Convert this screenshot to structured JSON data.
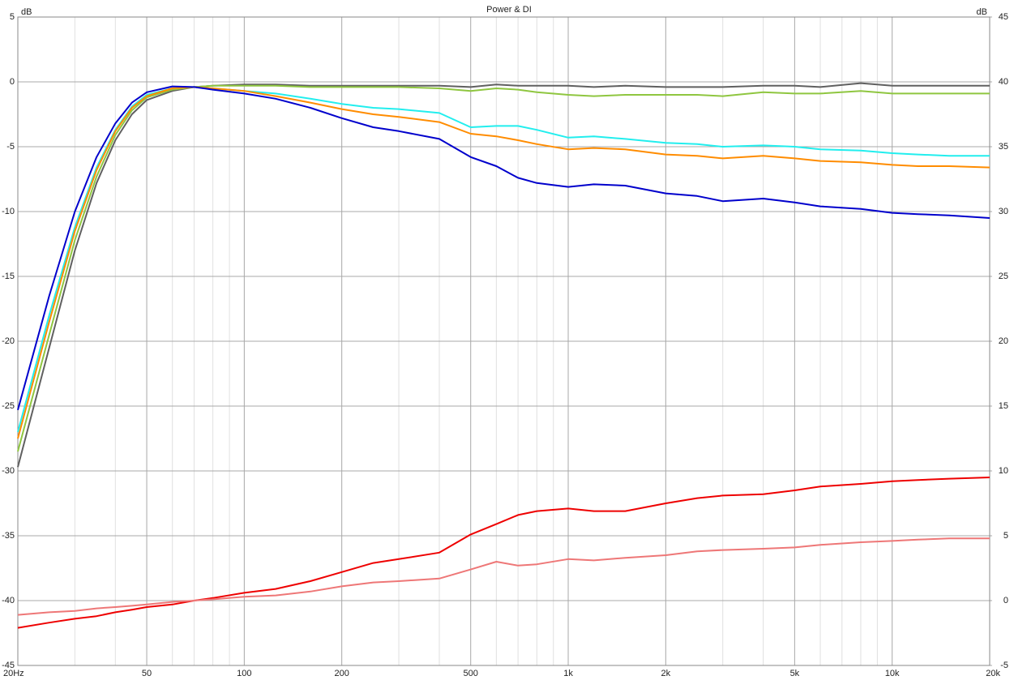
{
  "chart_data": {
    "type": "line",
    "title": "Power & DI",
    "y_label": "dB",
    "y2_label": "dB",
    "log_x": true,
    "grid": true,
    "x": [
      20,
      25,
      30,
      35,
      40,
      45,
      50,
      60,
      70,
      80,
      100,
      125,
      160,
      200,
      250,
      300,
      400,
      500,
      600,
      700,
      800,
      1000,
      1200,
      1500,
      2000,
      2500,
      3000,
      4000,
      5000,
      6000,
      8000,
      10000,
      12000,
      15000,
      20000
    ],
    "xlim": [
      20,
      20000
    ],
    "xticks": [
      {
        "value": 20,
        "label": "20Hz"
      },
      50,
      100,
      200,
      500,
      {
        "value": 1000,
        "label": "1k"
      },
      {
        "value": 2000,
        "label": "2k"
      },
      {
        "value": 5000,
        "label": "5k"
      },
      {
        "value": 10000,
        "label": "10k"
      },
      {
        "value": 20000,
        "label": "20k"
      }
    ],
    "xminorticks": [
      30,
      40,
      60,
      70,
      80,
      90,
      300,
      400,
      600,
      700,
      800,
      900,
      3000,
      4000,
      6000,
      7000,
      8000,
      9000
    ],
    "ylim": [
      -45,
      5
    ],
    "yticks": [
      5,
      0,
      -5,
      -10,
      -15,
      -20,
      -25,
      -30,
      -35,
      -40,
      -45
    ],
    "y2lim": [
      -5,
      45
    ],
    "y2ticks": [
      45,
      40,
      35,
      30,
      25,
      20,
      15,
      10,
      5,
      0,
      -5
    ],
    "series": [
      {
        "color": "#606060",
        "values": [
          -29.7,
          -20.5,
          -13,
          -7.8,
          -4.5,
          -2.5,
          -1.4,
          -0.7,
          -0.4,
          -0.3,
          -0.2,
          -0.2,
          -0.3,
          -0.3,
          -0.3,
          -0.3,
          -0.3,
          -0.4,
          -0.2,
          -0.3,
          -0.3,
          -0.3,
          -0.4,
          -0.3,
          -0.4,
          -0.4,
          -0.4,
          -0.3,
          -0.3,
          -0.4,
          -0.1,
          -0.3,
          -0.3,
          -0.3,
          -0.3
        ]
      },
      {
        "color": "#8fc640",
        "values": [
          -28.5,
          -19.5,
          -12.2,
          -7.3,
          -4.1,
          -2.2,
          -1.2,
          -0.6,
          -0.4,
          -0.3,
          -0.3,
          -0.3,
          -0.4,
          -0.4,
          -0.4,
          -0.4,
          -0.5,
          -0.7,
          -0.5,
          -0.6,
          -0.8,
          -1.0,
          -1.1,
          -1.0,
          -1.0,
          -1.0,
          -1.1,
          -0.8,
          -0.9,
          -0.9,
          -0.7,
          -0.9,
          -0.9,
          -0.9,
          -0.9
        ]
      },
      {
        "color": "#22eeee",
        "values": [
          -27.0,
          -18,
          -11.2,
          -6.6,
          -3.7,
          -1.9,
          -1.0,
          -0.5,
          -0.4,
          -0.5,
          -0.7,
          -0.9,
          -1.3,
          -1.7,
          -2.0,
          -2.1,
          -2.4,
          -3.5,
          -3.4,
          -3.4,
          -3.7,
          -4.3,
          -4.2,
          -4.4,
          -4.7,
          -4.8,
          -5.0,
          -4.9,
          -5.0,
          -5.2,
          -5.3,
          -5.5,
          -5.6,
          -5.7,
          -5.7
        ]
      },
      {
        "color": "#ff8c00",
        "values": [
          -27.5,
          -18.5,
          -11.5,
          -6.8,
          -3.8,
          -2.0,
          -1.1,
          -0.5,
          -0.4,
          -0.5,
          -0.7,
          -1.1,
          -1.6,
          -2.1,
          -2.5,
          -2.7,
          -3.1,
          -4.0,
          -4.2,
          -4.5,
          -4.8,
          -5.2,
          -5.1,
          -5.2,
          -5.6,
          -5.7,
          -5.9,
          -5.7,
          -5.9,
          -6.1,
          -6.2,
          -6.4,
          -6.5,
          -6.5,
          -6.6
        ]
      },
      {
        "color": "#0000cc",
        "values": [
          -25.3,
          -16.5,
          -10,
          -5.8,
          -3.2,
          -1.6,
          -0.8,
          -0.35,
          -0.4,
          -0.6,
          -0.9,
          -1.3,
          -2.0,
          -2.8,
          -3.5,
          -3.8,
          -4.4,
          -5.8,
          -6.5,
          -7.4,
          -7.8,
          -8.1,
          -7.9,
          -8.0,
          -8.6,
          -8.8,
          -9.2,
          -9.0,
          -9.3,
          -9.6,
          -9.8,
          -10.1,
          -10.2,
          -10.3,
          -10.5
        ]
      },
      {
        "color": "#ee0000",
        "axis": "y2",
        "values": [
          -2.1,
          -1.7,
          -1.4,
          -1.2,
          -0.9,
          -0.7,
          -0.5,
          -0.3,
          0.0,
          0.2,
          0.6,
          0.9,
          1.5,
          2.2,
          2.9,
          3.2,
          3.7,
          5.1,
          5.9,
          6.6,
          6.9,
          7.1,
          6.9,
          6.9,
          7.5,
          7.9,
          8.1,
          8.2,
          8.5,
          8.8,
          9.0,
          9.2,
          9.3,
          9.4,
          9.5
        ]
      },
      {
        "color": "#ee7777",
        "axis": "y2",
        "values": [
          -1.1,
          -0.9,
          -0.8,
          -0.6,
          -0.5,
          -0.4,
          -0.3,
          -0.1,
          0,
          0.1,
          0.3,
          0.4,
          0.7,
          1.1,
          1.4,
          1.5,
          1.7,
          2.4,
          3.0,
          2.7,
          2.8,
          3.2,
          3.1,
          3.3,
          3.5,
          3.8,
          3.9,
          4.0,
          4.1,
          4.3,
          4.5,
          4.6,
          4.7,
          4.8,
          4.8
        ]
      }
    ]
  }
}
